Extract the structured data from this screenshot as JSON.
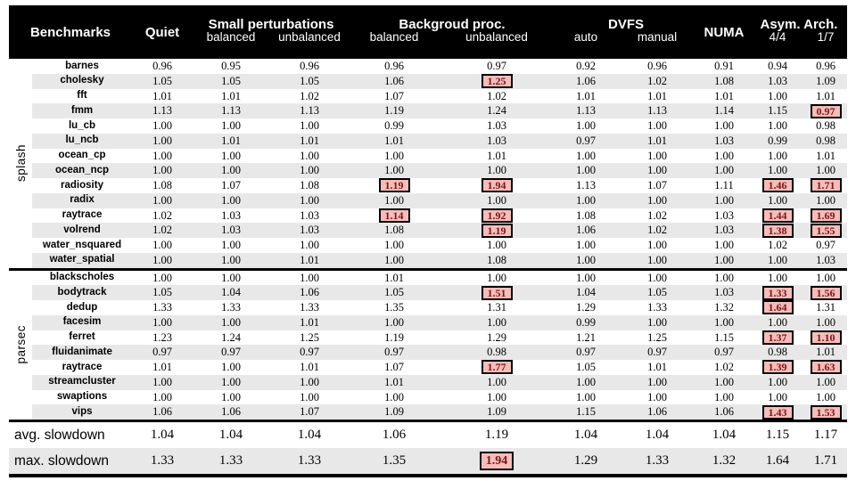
{
  "colors": {
    "header_bg": "#000000",
    "header_text": "#ffffff",
    "row_stripe": "#e8e8e8",
    "highlight_fill": "#f5bdba",
    "highlight_border": "#000000",
    "highlight_text": "#7e1416"
  },
  "table": {
    "columns": {
      "benchmarks": "Benchmarks",
      "quiet": "Quiet",
      "small_pert": {
        "label": "Small perturbations",
        "balanced": "balanced",
        "unbalanced": "unbalanced"
      },
      "background": {
        "label": "Backgroud proc.",
        "balanced": "balanced",
        "unbalanced": "unbalanced"
      },
      "dvfs": {
        "label": "DVFS",
        "auto": "auto",
        "manual": "manual"
      },
      "numa": "NUMA",
      "asym": {
        "label": "Asym. Arch.",
        "c44": "4/4",
        "c17": "1/7"
      }
    },
    "value_columns": [
      "quiet",
      "sp_balanced",
      "sp_unbalanced",
      "bg_balanced",
      "bg_unbalanced",
      "dvfs_auto",
      "dvfs_manual",
      "numa",
      "asym_4_4",
      "asym_1_7"
    ],
    "groups": [
      {
        "name": "splash",
        "rows": [
          {
            "name": "barnes",
            "values": [
              "0.96",
              "0.95",
              "0.96",
              "0.96",
              "0.97",
              "0.92",
              "0.96",
              "0.91",
              "0.94",
              "0.96"
            ],
            "highlight": []
          },
          {
            "name": "cholesky",
            "values": [
              "1.05",
              "1.05",
              "1.05",
              "1.06",
              "1.25",
              "1.06",
              "1.02",
              "1.08",
              "1.03",
              "1.09"
            ],
            "highlight": [
              4
            ]
          },
          {
            "name": "fft",
            "values": [
              "1.01",
              "1.01",
              "1.02",
              "1.07",
              "1.02",
              "1.01",
              "1.01",
              "1.01",
              "1.00",
              "1.01"
            ],
            "highlight": []
          },
          {
            "name": "fmm",
            "values": [
              "1.13",
              "1.13",
              "1.13",
              "1.19",
              "1.24",
              "1.13",
              "1.13",
              "1.14",
              "1.15",
              "0.97"
            ],
            "highlight": [
              9
            ]
          },
          {
            "name": "lu_cb",
            "values": [
              "1.00",
              "1.00",
              "1.00",
              "0.99",
              "1.03",
              "1.00",
              "1.00",
              "1.00",
              "1.00",
              "0.98"
            ],
            "highlight": []
          },
          {
            "name": "lu_ncb",
            "values": [
              "1.00",
              "1.01",
              "1.01",
              "1.01",
              "1.03",
              "0.97",
              "1.01",
              "1.03",
              "0.99",
              "0.98"
            ],
            "highlight": []
          },
          {
            "name": "ocean_cp",
            "values": [
              "1.00",
              "1.00",
              "1.00",
              "1.00",
              "1.01",
              "1.00",
              "1.00",
              "1.00",
              "1.00",
              "1.01"
            ],
            "highlight": []
          },
          {
            "name": "ocean_ncp",
            "values": [
              "1.00",
              "1.00",
              "1.00",
              "1.00",
              "1.00",
              "1.00",
              "1.00",
              "1.00",
              "1.00",
              "1.00"
            ],
            "highlight": []
          },
          {
            "name": "radiosity",
            "values": [
              "1.08",
              "1.07",
              "1.08",
              "1.19",
              "1.94",
              "1.13",
              "1.07",
              "1.11",
              "1.46",
              "1.71"
            ],
            "highlight": [
              3,
              4,
              8,
              9
            ]
          },
          {
            "name": "radix",
            "values": [
              "1.00",
              "1.00",
              "1.00",
              "1.00",
              "1.00",
              "1.00",
              "1.00",
              "1.00",
              "1.00",
              "1.00"
            ],
            "highlight": []
          },
          {
            "name": "raytrace",
            "values": [
              "1.02",
              "1.03",
              "1.03",
              "1.14",
              "1.92",
              "1.08",
              "1.02",
              "1.03",
              "1.44",
              "1.69"
            ],
            "highlight": [
              3,
              4,
              8,
              9
            ]
          },
          {
            "name": "volrend",
            "values": [
              "1.02",
              "1.03",
              "1.03",
              "1.08",
              "1.19",
              "1.06",
              "1.02",
              "1.03",
              "1.38",
              "1.55"
            ],
            "highlight": [
              4,
              8,
              9
            ]
          },
          {
            "name": "water_nsquared",
            "values": [
              "1.00",
              "1.00",
              "1.00",
              "1.00",
              "1.00",
              "1.00",
              "1.00",
              "1.00",
              "1.02",
              "0.97"
            ],
            "highlight": []
          },
          {
            "name": "water_spatial",
            "values": [
              "1.00",
              "1.00",
              "1.01",
              "1.00",
              "1.08",
              "1.00",
              "1.00",
              "1.00",
              "1.00",
              "1.03"
            ],
            "highlight": []
          }
        ]
      },
      {
        "name": "parsec",
        "rows": [
          {
            "name": "blackscholes",
            "values": [
              "1.00",
              "1.00",
              "1.00",
              "1.01",
              "1.00",
              "1.00",
              "1.00",
              "1.00",
              "1.00",
              "1.00"
            ],
            "highlight": []
          },
          {
            "name": "bodytrack",
            "values": [
              "1.05",
              "1.04",
              "1.06",
              "1.05",
              "1.51",
              "1.04",
              "1.05",
              "1.03",
              "1.33",
              "1.56"
            ],
            "highlight": [
              4,
              8,
              9
            ]
          },
          {
            "name": "dedup",
            "values": [
              "1.33",
              "1.33",
              "1.33",
              "1.35",
              "1.31",
              "1.29",
              "1.33",
              "1.32",
              "1.64",
              "1.31"
            ],
            "highlight": [
              8
            ]
          },
          {
            "name": "facesim",
            "values": [
              "1.00",
              "1.00",
              "1.01",
              "1.00",
              "1.00",
              "0.99",
              "1.00",
              "1.00",
              "1.00",
              "1.00"
            ],
            "highlight": []
          },
          {
            "name": "ferret",
            "values": [
              "1.23",
              "1.24",
              "1.25",
              "1.19",
              "1.29",
              "1.21",
              "1.25",
              "1.15",
              "1.37",
              "1.10"
            ],
            "highlight": [
              8,
              9
            ]
          },
          {
            "name": "fluidanimate",
            "values": [
              "0.97",
              "0.97",
              "0.97",
              "0.97",
              "0.98",
              "0.97",
              "0.97",
              "0.97",
              "0.98",
              "1.01"
            ],
            "highlight": []
          },
          {
            "name": "raytrace",
            "values": [
              "1.01",
              "1.00",
              "1.01",
              "1.07",
              "1.77",
              "1.05",
              "1.01",
              "1.02",
              "1.39",
              "1.63"
            ],
            "highlight": [
              4,
              8,
              9
            ]
          },
          {
            "name": "streamcluster",
            "values": [
              "1.00",
              "1.00",
              "1.00",
              "1.01",
              "1.00",
              "1.00",
              "1.00",
              "1.00",
              "1.00",
              "1.00"
            ],
            "highlight": []
          },
          {
            "name": "swaptions",
            "values": [
              "1.00",
              "1.00",
              "1.00",
              "1.00",
              "1.00",
              "1.00",
              "1.00",
              "1.00",
              "1.00",
              "1.00"
            ],
            "highlight": []
          },
          {
            "name": "vips",
            "values": [
              "1.06",
              "1.06",
              "1.07",
              "1.09",
              "1.09",
              "1.15",
              "1.06",
              "1.06",
              "1.43",
              "1.53"
            ],
            "highlight": [
              8,
              9
            ]
          }
        ]
      }
    ],
    "footer": [
      {
        "label": "avg. slowdown",
        "values": [
          "1.04",
          "1.04",
          "1.04",
          "1.06",
          "1.19",
          "1.04",
          "1.04",
          "1.04",
          "1.15",
          "1.17"
        ],
        "highlight": []
      },
      {
        "label": "max. slowdown",
        "values": [
          "1.33",
          "1.33",
          "1.33",
          "1.35",
          "1.94",
          "1.29",
          "1.33",
          "1.32",
          "1.64",
          "1.71"
        ],
        "highlight": [
          4
        ]
      }
    ]
  }
}
